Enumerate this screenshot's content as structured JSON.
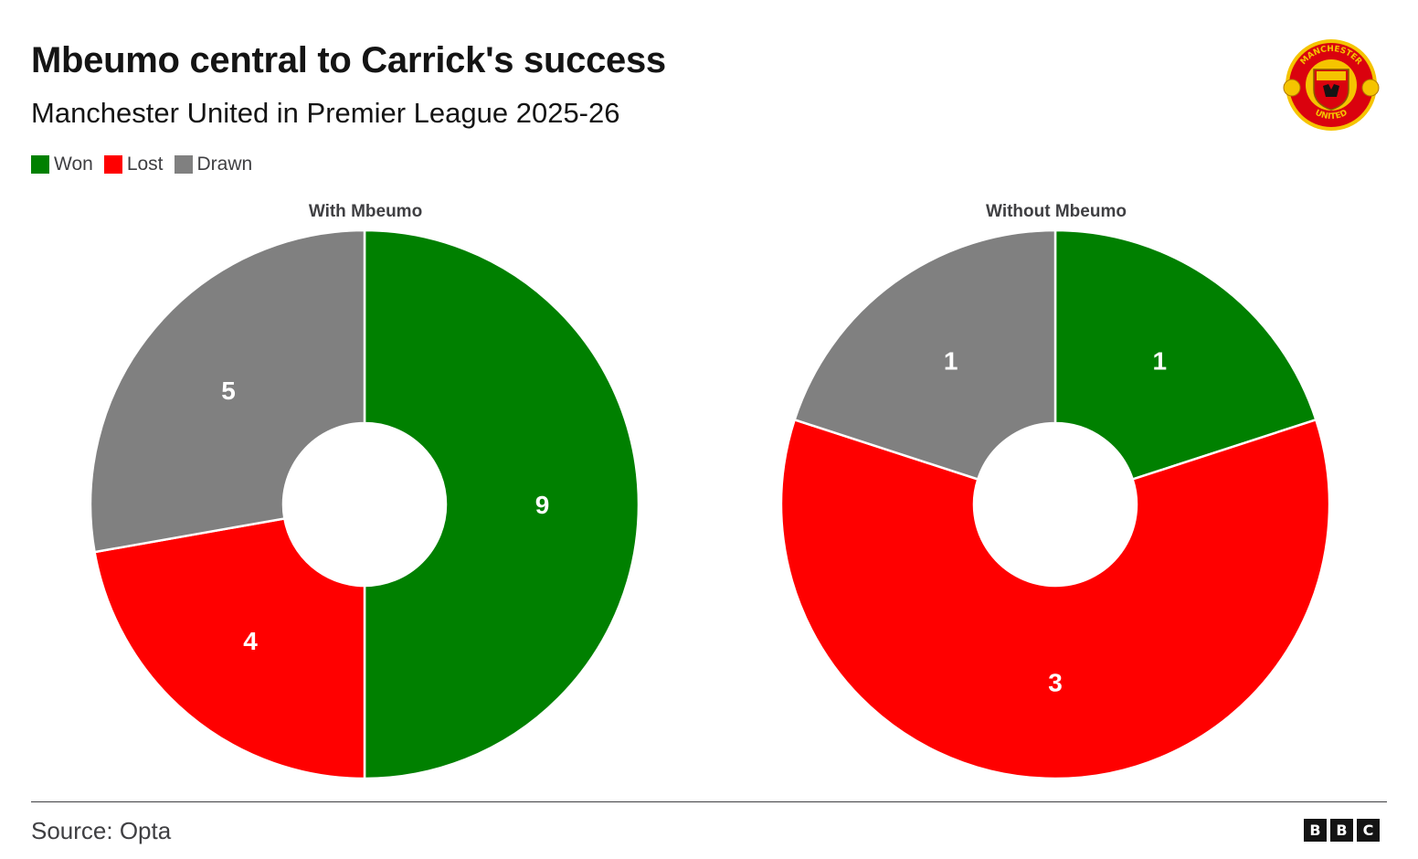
{
  "header": {
    "title": "Mbeumo central to Carrick's success",
    "subtitle": "Manchester United in Premier League 2025-26"
  },
  "legend": [
    {
      "label": "Won",
      "color": "#008000"
    },
    {
      "label": "Lost",
      "color": "#ff0000"
    },
    {
      "label": "Drawn",
      "color": "#808080"
    }
  ],
  "logo": {
    "icon": "manchester-united-crest",
    "text_top": "MANCHESTER",
    "text_bottom": "UNITED"
  },
  "chart_data": [
    {
      "type": "pie",
      "title": "With Mbeumo",
      "categories": [
        "Won",
        "Lost",
        "Drawn"
      ],
      "values": [
        9,
        4,
        5
      ],
      "colors": [
        "#008000",
        "#ff0000",
        "#808080"
      ]
    },
    {
      "type": "pie",
      "title": "Without Mbeumo",
      "categories": [
        "Won",
        "Lost",
        "Drawn"
      ],
      "values": [
        1,
        3,
        1
      ],
      "colors": [
        "#008000",
        "#ff0000",
        "#808080"
      ]
    }
  ],
  "footer": {
    "source": "Source: Opta",
    "brand": [
      "B",
      "B",
      "C"
    ]
  }
}
